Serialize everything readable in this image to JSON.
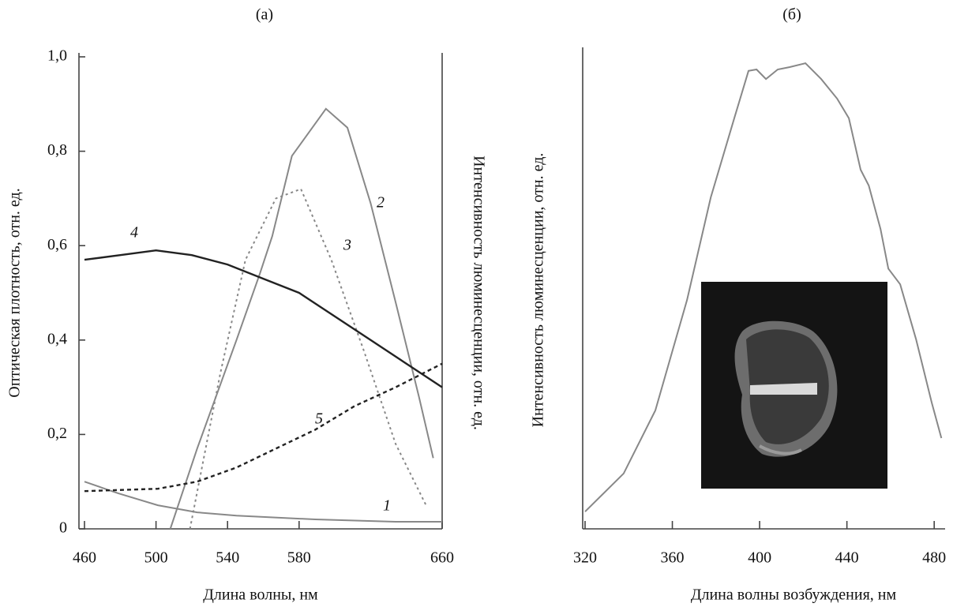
{
  "chart_data": [
    {
      "type": "line",
      "title": "(а)",
      "x_label": "Длина волны, нм",
      "y_label": "Оптическая плотность, отн. ед.",
      "y2_label": "Интенсивность люминесценции, отн. ед.",
      "xlim": [
        460,
        660
      ],
      "ylim": [
        0,
        1.0
      ],
      "xticks": [
        460,
        500,
        540,
        580,
        660
      ],
      "yticks": [
        0,
        {
          "value": 0.2,
          "label": "0,2"
        },
        {
          "value": 0.4,
          "label": "0,4"
        },
        {
          "value": 0.6,
          "label": "0,6"
        },
        {
          "value": 0.8,
          "label": "0,8"
        },
        {
          "value": 1.0,
          "label": "1,0"
        }
      ],
      "series": [
        {
          "name": "1",
          "color": "#888888",
          "dash": "solid",
          "x": [
            460,
            479,
            501,
            523,
            545,
            589,
            634,
            660
          ],
          "values": [
            0.1,
            0.075,
            0.05,
            0.035,
            0.028,
            0.02,
            0.015,
            0.015
          ]
        },
        {
          "name": "2",
          "color": "#888888",
          "dash": "solid",
          "x": [
            508,
            523,
            545,
            558,
            565,
            576,
            595,
            607,
            620,
            634,
            647,
            655
          ],
          "values": [
            0,
            0.17,
            0.4,
            0.54,
            0.62,
            0.79,
            0.89,
            0.85,
            0.69,
            0.48,
            0.28,
            0.15
          ]
        },
        {
          "name": "3",
          "color": "#888888",
          "dash": "dotted",
          "x": [
            519,
            536,
            550,
            567,
            581,
            598,
            616,
            634,
            651
          ],
          "values": [
            0,
            0.33,
            0.57,
            0.7,
            0.72,
            0.57,
            0.38,
            0.18,
            0.05
          ]
        },
        {
          "name": "4",
          "color": "#222222",
          "dash": "solid",
          "x": [
            460,
            480,
            500,
            520,
            540,
            560,
            580,
            600,
            620,
            640,
            660
          ],
          "values": [
            0.57,
            0.58,
            0.59,
            0.58,
            0.56,
            0.53,
            0.5,
            0.45,
            0.4,
            0.35,
            0.3
          ]
        },
        {
          "name": "5",
          "color": "#222222",
          "dash": "dashed",
          "x": [
            460,
            501,
            523,
            545,
            567,
            589,
            611,
            634,
            660
          ],
          "values": [
            0.08,
            0.085,
            0.1,
            0.13,
            0.17,
            0.21,
            0.26,
            0.3,
            0.35
          ]
        }
      ]
    },
    {
      "type": "line",
      "title": "(б)",
      "x_label": "Длина волны возбуждения, нм",
      "y_label": "Интенсивность люминесценции, отн. ед.",
      "xlim": [
        320,
        485
      ],
      "ylim": [
        0,
        1
      ],
      "xticks": [
        320,
        360,
        400,
        440,
        480
      ],
      "series": [
        {
          "color": "#888888",
          "dash": "solid",
          "x": [
            320,
            337.7,
            352.2,
            366.7,
            377.6,
            388.4,
            394.9,
            398.6,
            402.9,
            408.3,
            413.8,
            421,
            428.2,
            435.5,
            440.9,
            446.3,
            450,
            455.4,
            459,
            464.4,
            471.7,
            478.9,
            483.3
          ],
          "values": [
            0.036,
            0.116,
            0.248,
            0.479,
            0.694,
            0.86,
            0.959,
            0.962,
            0.942,
            0.962,
            0.967,
            0.975,
            0.942,
            0.901,
            0.86,
            0.752,
            0.719,
            0.628,
            0.545,
            0.512,
            0.397,
            0.264,
            0.19
          ]
        }
      ]
    }
  ]
}
